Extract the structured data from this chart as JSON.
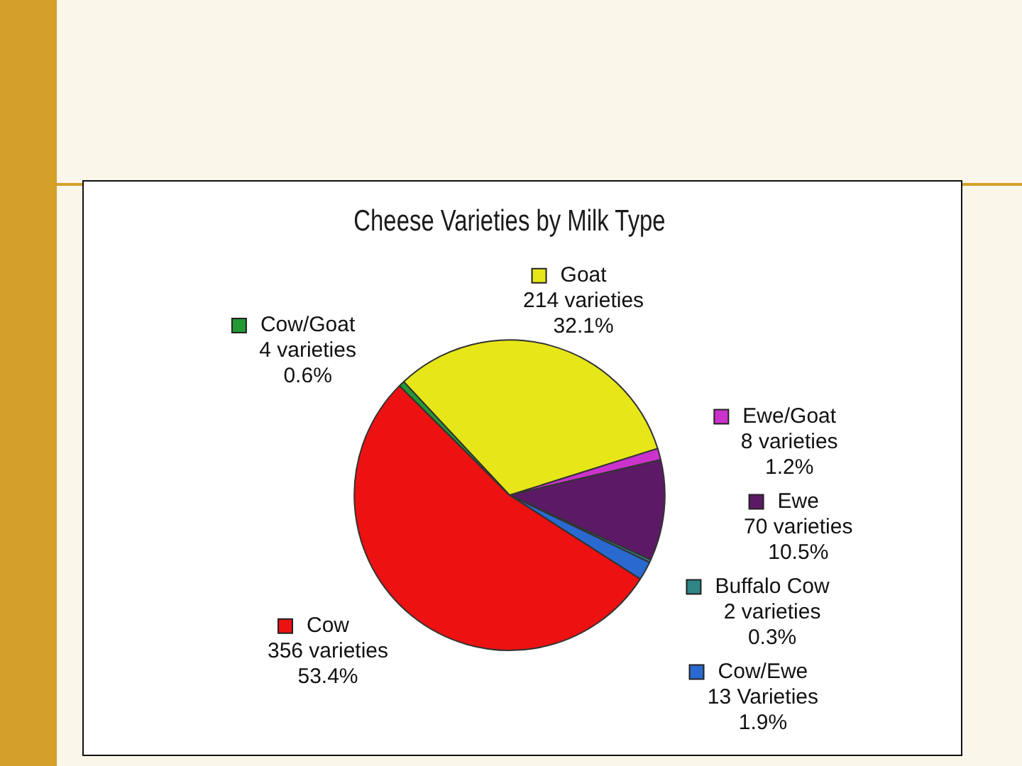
{
  "chart_data": {
    "type": "pie",
    "title": "Cheese Varieties by Milk Type",
    "categories": [
      "Goat",
      "Ewe/Goat",
      "Ewe",
      "Buffalo Cow",
      "Cow/Ewe",
      "Cow",
      "Cow/Goat"
    ],
    "values": [
      214,
      8,
      70,
      2,
      13,
      356,
      4
    ],
    "value_labels": [
      "214 varieties\n32.1%",
      "8 varieties\n1.2%",
      "70 varieties\n10.5%",
      "2 varieties\n0.3%",
      "13 Varieties\n1.9%",
      "356 varieties\n53.4%",
      "4 varieties\n0.6%"
    ],
    "colors": [
      "#e6e619",
      "#cc33cc",
      "#5c1a66",
      "#2e8585",
      "#2a6ad0",
      "#ee1111",
      "#229933"
    ],
    "legend": "center"
  }
}
